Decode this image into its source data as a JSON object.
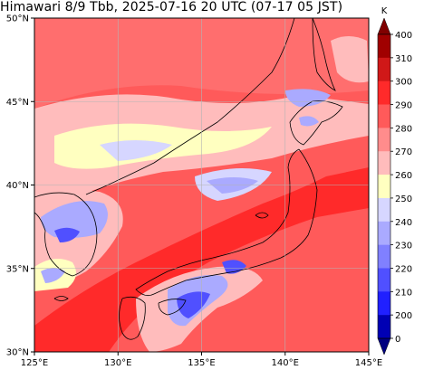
{
  "title": "Himawari 8/9 Tbb, 2025-07-16 20 UTC (07-17 05 JST)",
  "map": {
    "lon_range": [
      125,
      145
    ],
    "lat_range": [
      30,
      50
    ],
    "lon_ticks": [
      "125°E",
      "130°E",
      "135°E",
      "140°E",
      "145°E"
    ],
    "lat_ticks": [
      "30°N",
      "35°N",
      "40°N",
      "45°N",
      "50°N"
    ],
    "gridlines": true,
    "coastline_color": "#000000"
  },
  "colorbar": {
    "unit": "K",
    "tick_labels": [
      "400",
      "310",
      "300",
      "290",
      "280",
      "270",
      "260",
      "250",
      "240",
      "230",
      "220",
      "210",
      "200",
      "0"
    ],
    "colors_top_to_bottom": [
      "#a00000",
      "#d01818",
      "#ff2a2a",
      "#ff5a5a",
      "#ff8c8c",
      "#ffbcbc",
      "#ffffc0",
      "#d6d6ff",
      "#aaaaff",
      "#8080ff",
      "#5050ff",
      "#2020ff",
      "#0000b4"
    ],
    "extend_max_color": "#800000",
    "extend_min_color": "#000080"
  }
}
